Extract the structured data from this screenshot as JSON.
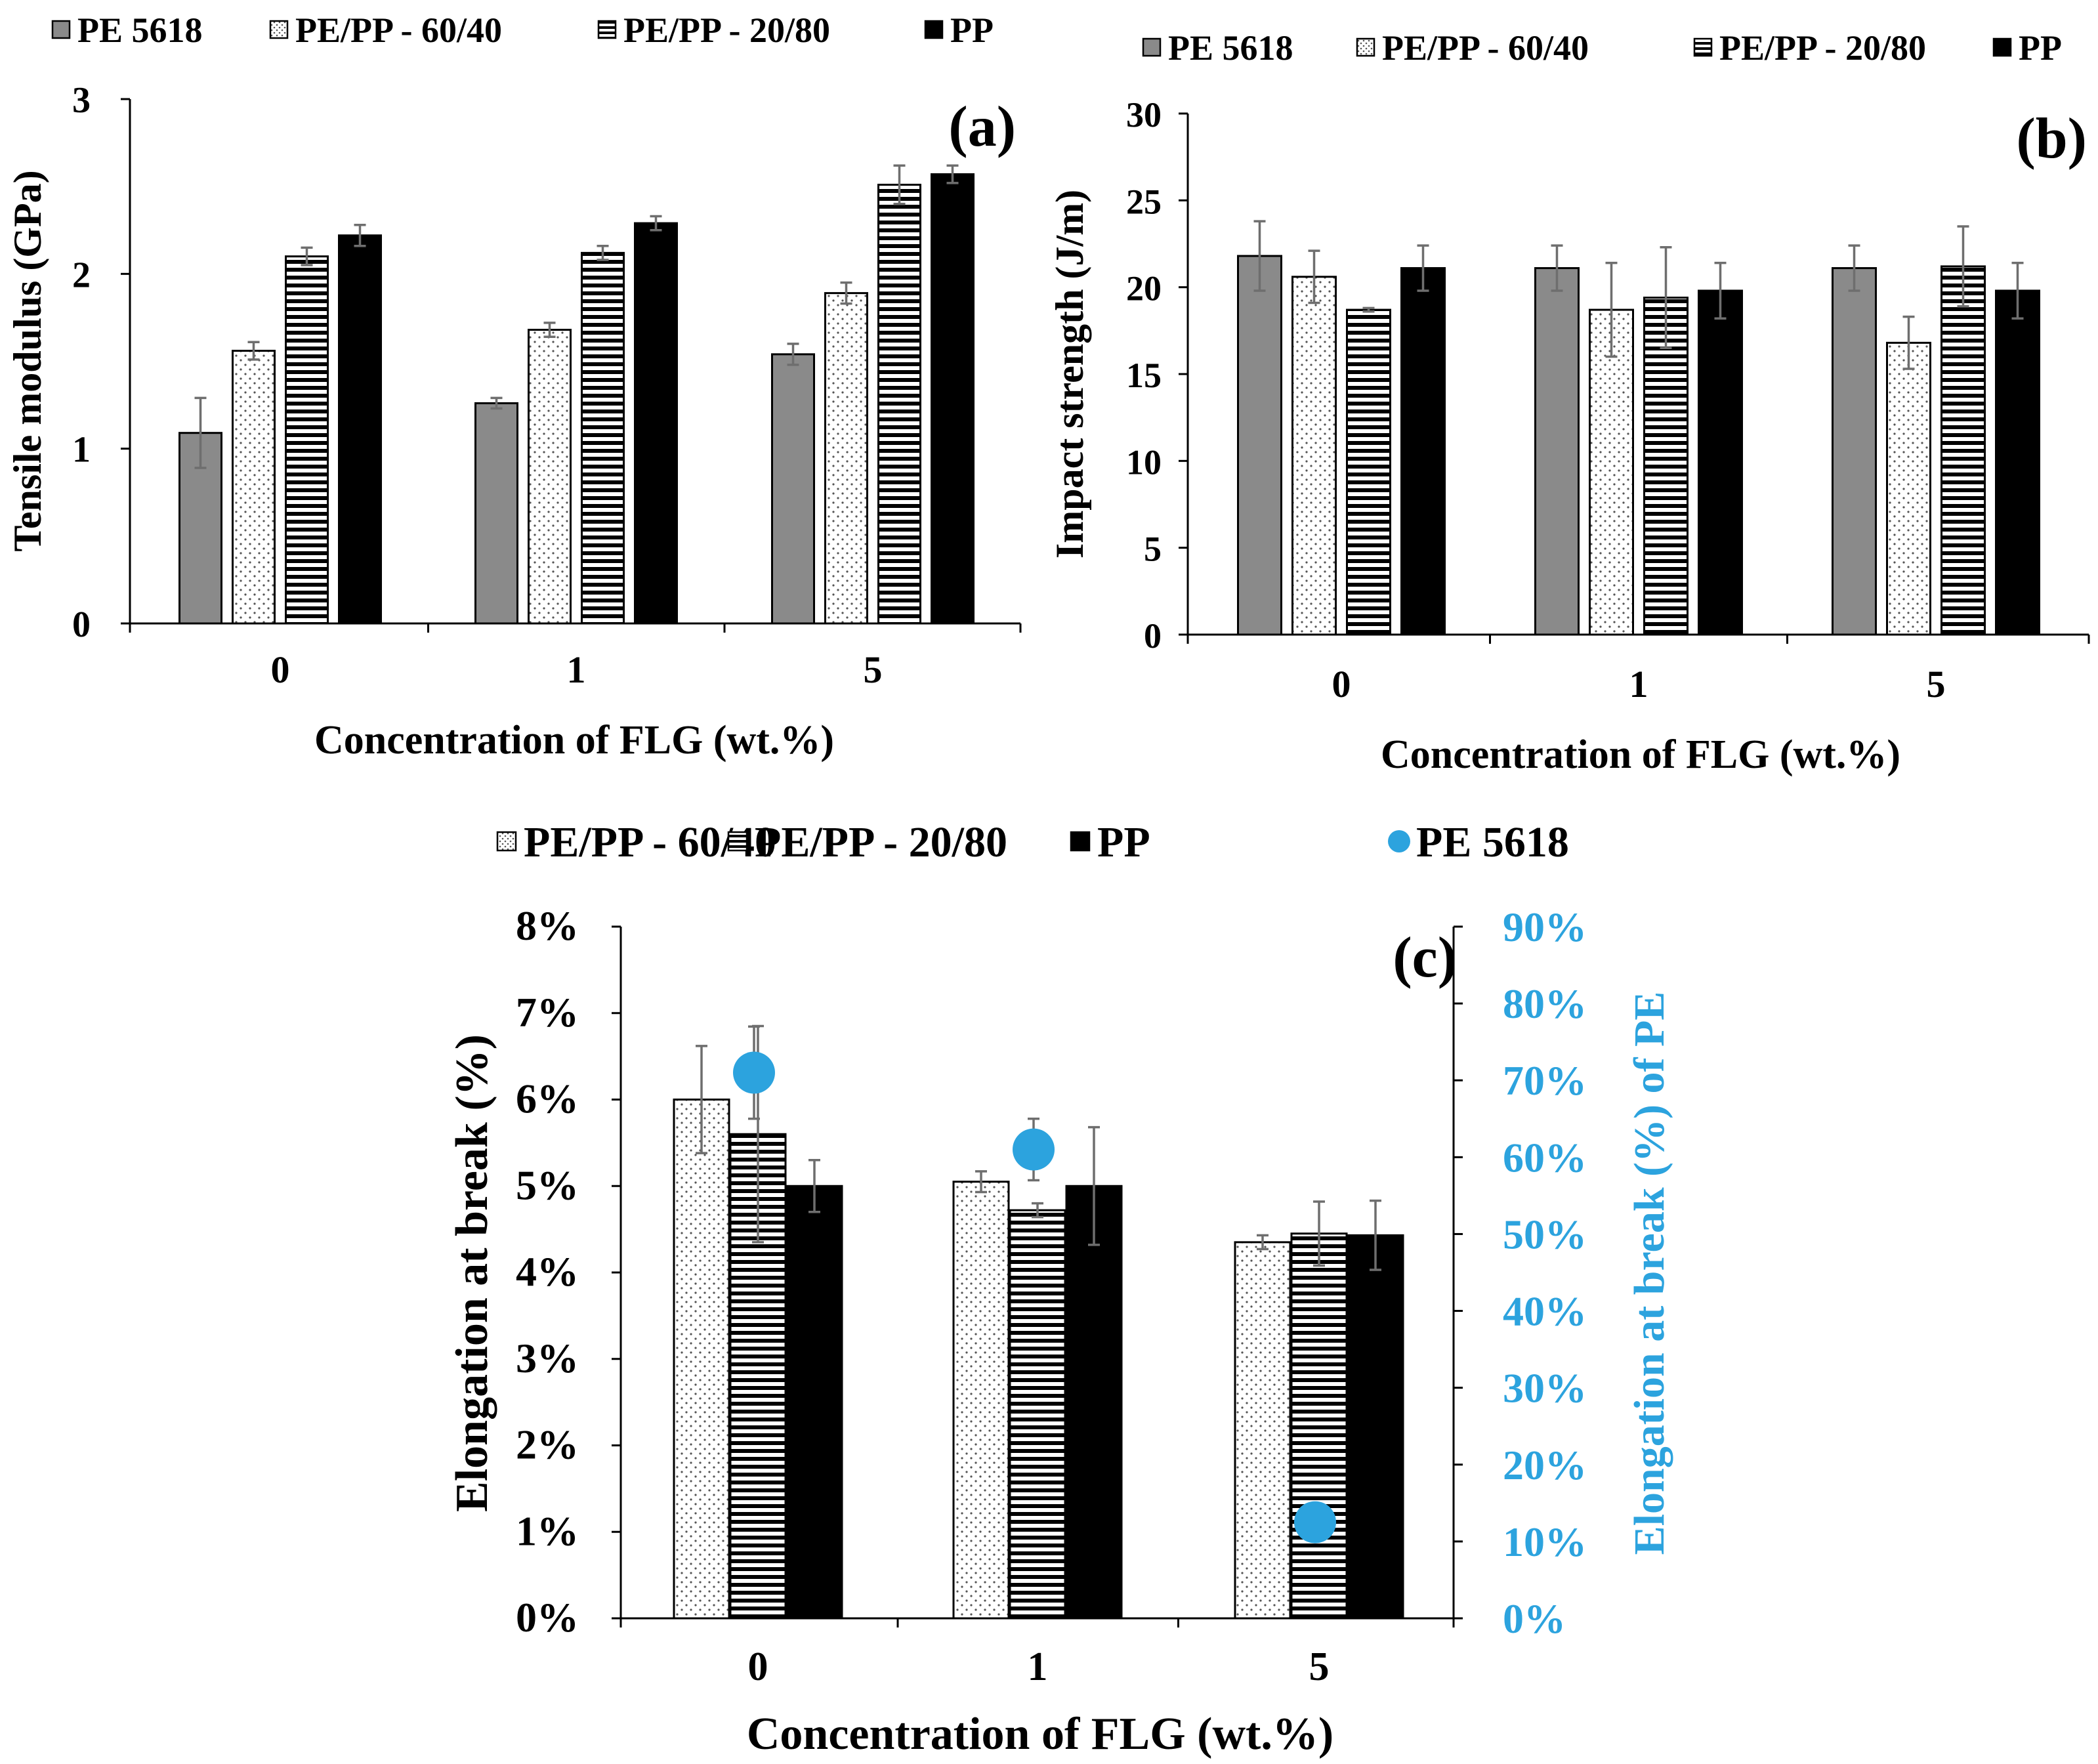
{
  "figure": {
    "background": "#ffffff",
    "axis_color": "#000000",
    "errorbar_color": "#6e6e6e",
    "secondary_color": "#2ca3de"
  },
  "series_styles": {
    "PE 5618": {
      "fill": "#8a8a8a",
      "pattern": "solid"
    },
    "PE/PP - 60/40": {
      "fill": "#ffffff",
      "pattern": "dots"
    },
    "PE/PP - 20/80": {
      "fill": "#ffffff",
      "pattern": "hstripes"
    },
    "PP": {
      "fill": "#000000",
      "pattern": "solid"
    }
  },
  "chart_data": [
    {
      "id": "a",
      "type": "bar",
      "panel_label": "(a)",
      "title": "",
      "xlabel": "Concentration of FLG (wt.%)",
      "ylabel": "Tensile modulus (GPa)",
      "ylim": [
        0,
        3
      ],
      "yticks": [
        0,
        1,
        2,
        3
      ],
      "ytick_labels": [
        "0",
        "1",
        "2",
        "3"
      ],
      "grid": false,
      "legend_position": "top",
      "categories": [
        "0",
        "1",
        "5"
      ],
      "series": [
        {
          "name": "PE 5618",
          "values": [
            1.09,
            1.26,
            1.54
          ],
          "errors": [
            0.2,
            0.03,
            0.06
          ]
        },
        {
          "name": "PE/PP - 60/40",
          "values": [
            1.56,
            1.68,
            1.89
          ],
          "errors": [
            0.05,
            0.04,
            0.06
          ]
        },
        {
          "name": "PE/PP - 20/80",
          "values": [
            2.1,
            2.12,
            2.51
          ],
          "errors": [
            0.05,
            0.04,
            0.11
          ]
        },
        {
          "name": "PP",
          "values": [
            2.22,
            2.29,
            2.57
          ],
          "errors": [
            0.06,
            0.04,
            0.05
          ]
        }
      ]
    },
    {
      "id": "b",
      "type": "bar",
      "panel_label": "(b)",
      "title": "",
      "xlabel": "Concentration of FLG (wt.%)",
      "ylabel": "Impact strength (J/m)",
      "ylim": [
        0,
        30
      ],
      "yticks": [
        0,
        5,
        10,
        15,
        20,
        25,
        30
      ],
      "ytick_labels": [
        "0",
        "5",
        "10",
        "15",
        "20",
        "25",
        "30"
      ],
      "grid": false,
      "legend_position": "top",
      "categories": [
        "0",
        "1",
        "5"
      ],
      "series": [
        {
          "name": "PE 5618",
          "values": [
            21.8,
            21.1,
            21.1
          ],
          "errors": [
            2.0,
            1.3,
            1.3
          ]
        },
        {
          "name": "PE/PP - 60/40",
          "values": [
            20.6,
            18.7,
            16.8
          ],
          "errors": [
            1.5,
            2.7,
            1.5
          ]
        },
        {
          "name": "PE/PP - 20/80",
          "values": [
            18.7,
            19.4,
            21.2
          ],
          "errors": [
            0.1,
            2.9,
            2.3
          ]
        },
        {
          "name": "PP",
          "values": [
            21.1,
            19.8,
            19.8
          ],
          "errors": [
            1.3,
            1.6,
            1.6
          ]
        }
      ]
    },
    {
      "id": "c",
      "type": "bar",
      "panel_label": "(c)",
      "title": "",
      "xlabel": "Concentration of FLG (wt.%)",
      "ylabel": "Elongation at break (%)",
      "ylim": [
        0,
        8
      ],
      "yticks": [
        0,
        1,
        2,
        3,
        4,
        5,
        6,
        7,
        8
      ],
      "ytick_labels": [
        "0%",
        "1%",
        "2%",
        "3%",
        "4%",
        "5%",
        "6%",
        "7%",
        "8%"
      ],
      "y2label": "Elongation at break (%) of PE",
      "y2lim": [
        0,
        90
      ],
      "y2ticks": [
        0,
        10,
        20,
        30,
        40,
        50,
        60,
        70,
        80,
        90
      ],
      "y2tick_labels": [
        "0%",
        "10%",
        "20%",
        "30%",
        "40%",
        "50%",
        "60%",
        "70%",
        "80%",
        "90%"
      ],
      "grid": false,
      "legend_position": "top",
      "categories": [
        "0",
        "1",
        "5"
      ],
      "series": [
        {
          "name": "PE/PP - 60/40",
          "values": [
            6.0,
            5.05,
            4.35
          ],
          "errors": [
            0.62,
            0.12,
            0.08
          ]
        },
        {
          "name": "PE/PP - 20/80",
          "values": [
            5.6,
            4.72,
            4.45
          ],
          "errors": [
            1.25,
            0.08,
            0.37
          ]
        },
        {
          "name": "PP",
          "values": [
            5.0,
            5.0,
            4.43
          ],
          "errors": [
            0.3,
            0.68,
            0.4
          ]
        }
      ],
      "secondary_series": [
        {
          "name": "PE 5618",
          "type": "scatter",
          "axis": "y2",
          "values": [
            71,
            61,
            12.5
          ],
          "errors": [
            6,
            4,
            0
          ]
        }
      ],
      "legend_order": [
        "PE/PP - 60/40",
        "PE/PP - 20/80",
        "PP",
        "PE 5618"
      ]
    }
  ]
}
